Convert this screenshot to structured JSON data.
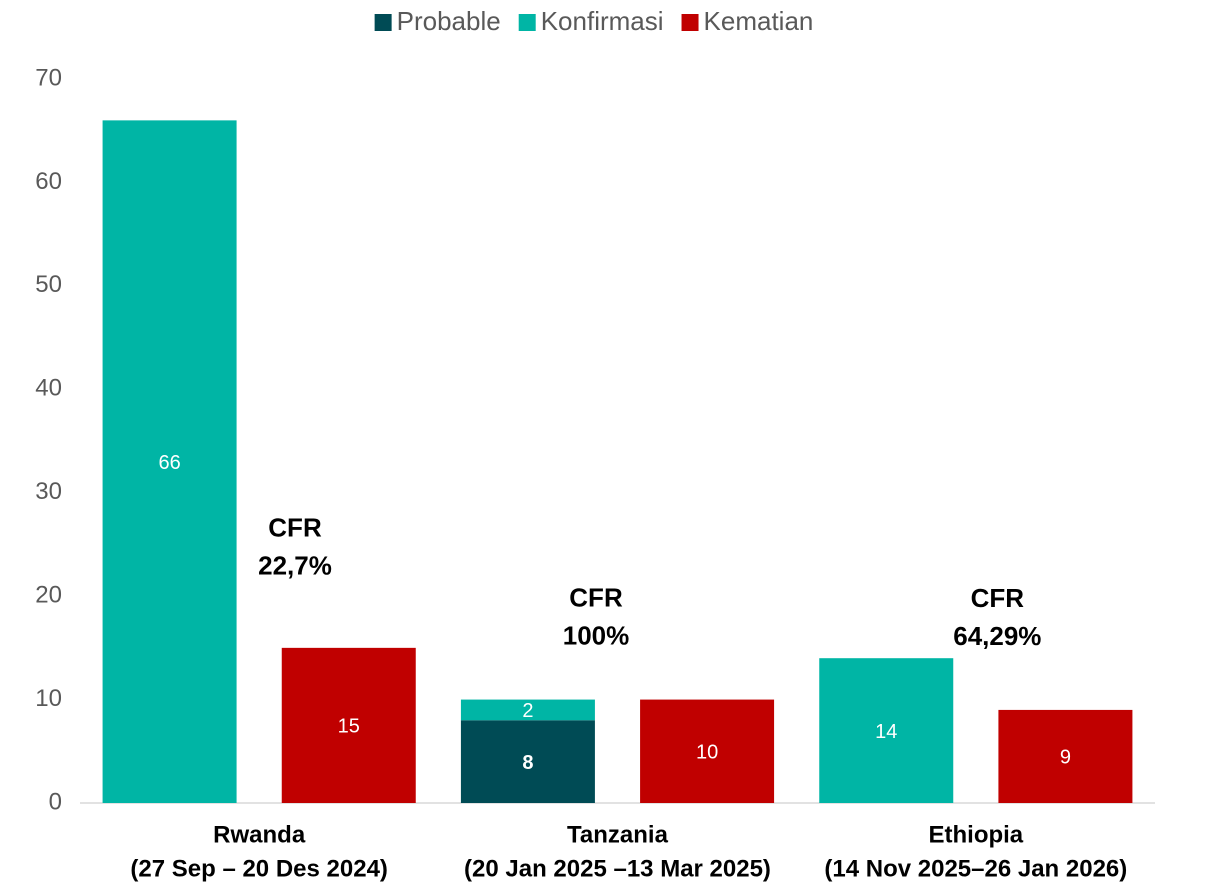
{
  "chart_data": {
    "type": "stacked_bar",
    "categories": [
      "Rwanda",
      "Tanzania",
      "Ethiopia"
    ],
    "category_periods": [
      "(27 Sep – 20 Des 2024)",
      "(20 Jan 2025 –13 Mar 2025)",
      "(14 Nov 2025–26 Jan 2026)"
    ],
    "series": [
      {
        "name": "Probable",
        "color": "#004b55",
        "values": [
          null,
          8,
          null
        ],
        "stack": "cases"
      },
      {
        "name": "Konfirmasi",
        "color": "#00b5a5",
        "values": [
          66,
          2,
          14
        ],
        "stack": "cases"
      },
      {
        "name": "Kematian",
        "color": "#c00000",
        "values": [
          15,
          10,
          9
        ],
        "stack": "deaths"
      }
    ],
    "annotations": [
      [
        "CFR",
        "22,7%"
      ],
      [
        "CFR",
        "100%"
      ],
      [
        "CFR",
        "64,29%"
      ]
    ],
    "ylim": [
      0,
      70
    ],
    "yticks": [
      0,
      10,
      20,
      30,
      40,
      50,
      60,
      70
    ],
    "grid": false,
    "legend": "top"
  }
}
